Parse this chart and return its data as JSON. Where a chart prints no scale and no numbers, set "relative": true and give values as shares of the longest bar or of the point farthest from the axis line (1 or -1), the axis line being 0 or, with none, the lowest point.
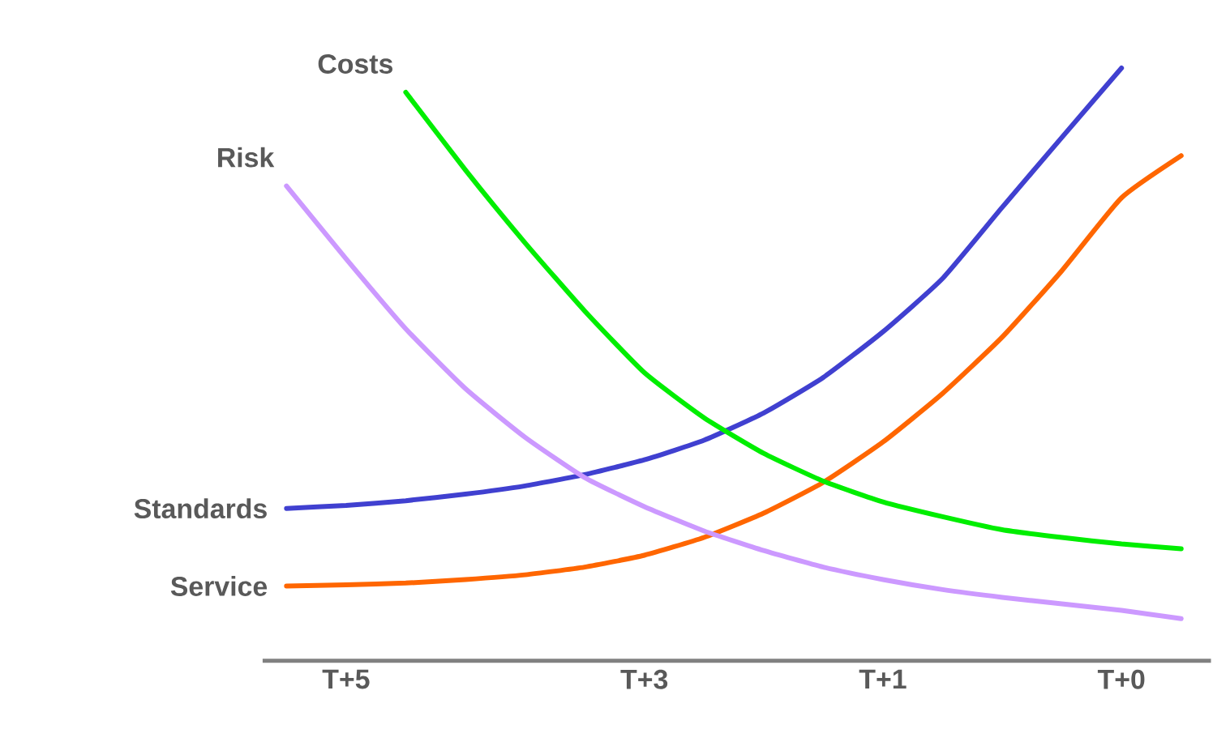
{
  "chart_data": {
    "type": "line",
    "relative": true,
    "legend": false,
    "marker": "none",
    "line_style": "solid",
    "categories": [
      null,
      "T+5",
      null,
      null,
      null,
      null,
      "T+3",
      null,
      null,
      null,
      "T+1",
      null,
      null,
      null,
      "T+0",
      null
    ],
    "series": [
      {
        "name": "Standards",
        "color": "#4040d0",
        "values": [
          0.257,
          0.262,
          0.27,
          0.281,
          0.295,
          0.314,
          0.339,
          0.372,
          0.418,
          0.478,
          0.555,
          0.645,
          0.765,
          0.883,
          1.0,
          null
        ]
      },
      {
        "name": "Service",
        "color": "#ff6600",
        "values": [
          0.126,
          0.128,
          0.131,
          0.137,
          0.145,
          0.158,
          0.178,
          0.208,
          0.249,
          0.301,
          0.369,
          0.451,
          0.546,
          0.658,
          0.781,
          0.852
        ]
      },
      {
        "name": "Costs",
        "color": "#00ee00",
        "values": [
          null,
          null,
          0.959,
          0.828,
          0.705,
          0.59,
          0.486,
          0.41,
          0.35,
          0.303,
          0.268,
          0.243,
          0.221,
          0.208,
          0.197,
          0.189
        ]
      },
      {
        "name": "Risk",
        "color": "#cc99ff",
        "values": [
          0.801,
          0.678,
          0.56,
          0.459,
          0.377,
          0.309,
          0.26,
          0.219,
          0.186,
          0.158,
          0.137,
          0.12,
          0.107,
          0.096,
          0.085,
          0.071
        ]
      }
    ]
  }
}
